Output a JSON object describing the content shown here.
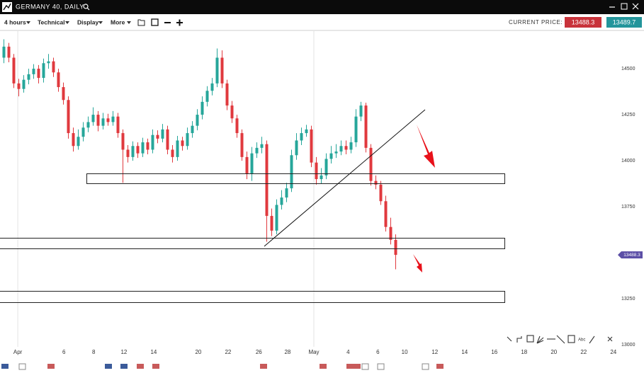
{
  "header": {
    "title": "GERMANY 40, DAILY"
  },
  "toolbar": {
    "timeframe": "4 hours",
    "menus": [
      "Technical",
      "Display",
      "More"
    ],
    "current_price_label": "CURRENT PRICE:",
    "bid": "13488.3",
    "ask": "13489.7"
  },
  "chart_data": {
    "type": "candlestick",
    "open": [
      14560,
      14620,
      14560,
      14420,
      14390,
      14440,
      14470,
      14500,
      14450,
      14530,
      14540,
      14480,
      14400,
      14330,
      14150,
      14080,
      14130,
      14180,
      14210,
      14250,
      14190,
      14230,
      14210,
      14240,
      14150,
      14060,
      14020,
      14080,
      14040,
      14100,
      14060,
      14140,
      14120,
      14170,
      14060,
      14020,
      14110,
      14080,
      14150,
      14190,
      14250,
      14320,
      14380,
      14420,
      14560,
      14420,
      14300,
      14230,
      14150,
      14020,
      13930,
      14040,
      14070,
      14090,
      13700,
      13620,
      13760,
      13800,
      13850,
      14030,
      14110,
      14150,
      14170,
      13990,
      13900,
      13920,
      14010,
      14040,
      14050,
      14080,
      14060,
      14100,
      14240,
      14300,
      14070,
      13890,
      13870,
      13780,
      13640,
      13570
    ],
    "high": [
      14660,
      14640,
      14580,
      14445,
      14465,
      14500,
      14525,
      14520,
      14555,
      14580,
      14560,
      14500,
      14425,
      14350,
      14180,
      14170,
      14210,
      14240,
      14290,
      14270,
      14260,
      14255,
      14270,
      14260,
      14170,
      14085,
      14105,
      14100,
      14125,
      14120,
      14170,
      14165,
      14200,
      14190,
      14085,
      14135,
      14130,
      14180,
      14215,
      14280,
      14350,
      14405,
      14450,
      14610,
      14600,
      14440,
      14325,
      14250,
      14170,
      14050,
      14075,
      14100,
      14130,
      14110,
      13740,
      13790,
      13840,
      13880,
      14060,
      14150,
      14180,
      14195,
      14190,
      14020,
      13960,
      14040,
      14080,
      14090,
      14110,
      14110,
      14130,
      14280,
      14320,
      14315,
      14090,
      13920,
      13890,
      13810,
      13690,
      13600
    ],
    "low": [
      14530,
      14535,
      14395,
      14350,
      14370,
      14415,
      14445,
      14420,
      14425,
      14500,
      14455,
      14375,
      14305,
      14120,
      14050,
      14060,
      14105,
      14155,
      14190,
      14160,
      14170,
      14190,
      14190,
      14125,
      13880,
      13990,
      14000,
      14015,
      14020,
      14035,
      14040,
      14095,
      14100,
      14035,
      13990,
      14000,
      14055,
      14060,
      14125,
      14165,
      14225,
      14295,
      14355,
      14400,
      14395,
      14275,
      14205,
      14125,
      14000,
      13900,
      13890,
      14015,
      14040,
      13560,
      13590,
      13600,
      13735,
      13775,
      13830,
      14005,
      14085,
      14130,
      13965,
      13870,
      13875,
      13900,
      13985,
      14015,
      14030,
      14035,
      14040,
      14075,
      14215,
      14045,
      13865,
      13845,
      13760,
      13615,
      13545,
      13410
    ],
    "close": [
      14620,
      14560,
      14420,
      14390,
      14440,
      14470,
      14500,
      14450,
      14530,
      14540,
      14480,
      14400,
      14330,
      14150,
      14080,
      14130,
      14180,
      14210,
      14250,
      14190,
      14230,
      14210,
      14240,
      14150,
      14060,
      14020,
      14080,
      14040,
      14100,
      14060,
      14140,
      14120,
      14170,
      14060,
      14020,
      14110,
      14080,
      14150,
      14190,
      14250,
      14320,
      14380,
      14420,
      14560,
      14420,
      14300,
      14230,
      14150,
      14020,
      13930,
      14040,
      14070,
      14090,
      13700,
      13620,
      13760,
      13800,
      13850,
      14030,
      14110,
      14150,
      14170,
      13990,
      13900,
      13920,
      14010,
      14040,
      14050,
      14080,
      14060,
      14100,
      14240,
      14300,
      14070,
      13890,
      13870,
      13780,
      13640,
      13570,
      13488.3
    ],
    "up_color": "#26a69a",
    "down_color": "#e0393e",
    "price_tag_color": "#5b4ea6",
    "ylim": [
      12931,
      14708
    ],
    "yticks": [
      13000,
      13250,
      13750,
      14000,
      14250,
      14500
    ],
    "xlim": [
      0,
      124
    ],
    "xticks": [
      {
        "value": 3.3,
        "label": "Apr"
      },
      {
        "value": 12.6,
        "label": "6"
      },
      {
        "value": 18.6,
        "label": "8"
      },
      {
        "value": 24.7,
        "label": "12"
      },
      {
        "value": 30.7,
        "label": "14"
      },
      {
        "value": 39.7,
        "label": "20"
      },
      {
        "value": 45.7,
        "label": "22"
      },
      {
        "value": 51.9,
        "label": "26"
      },
      {
        "value": 57.7,
        "label": "28"
      },
      {
        "value": 63,
        "label": "May"
      },
      {
        "value": 69.9,
        "label": "4"
      },
      {
        "value": 75.9,
        "label": "6"
      },
      {
        "value": 81.3,
        "label": "10"
      },
      {
        "value": 87.4,
        "label": "12"
      },
      {
        "value": 93.4,
        "label": "14"
      },
      {
        "value": 99.4,
        "label": "16"
      },
      {
        "value": 105.4,
        "label": "18"
      },
      {
        "value": 111.4,
        "label": "20"
      },
      {
        "value": 117.4,
        "label": "22"
      },
      {
        "value": 123.4,
        "label": "24"
      }
    ]
  }
}
